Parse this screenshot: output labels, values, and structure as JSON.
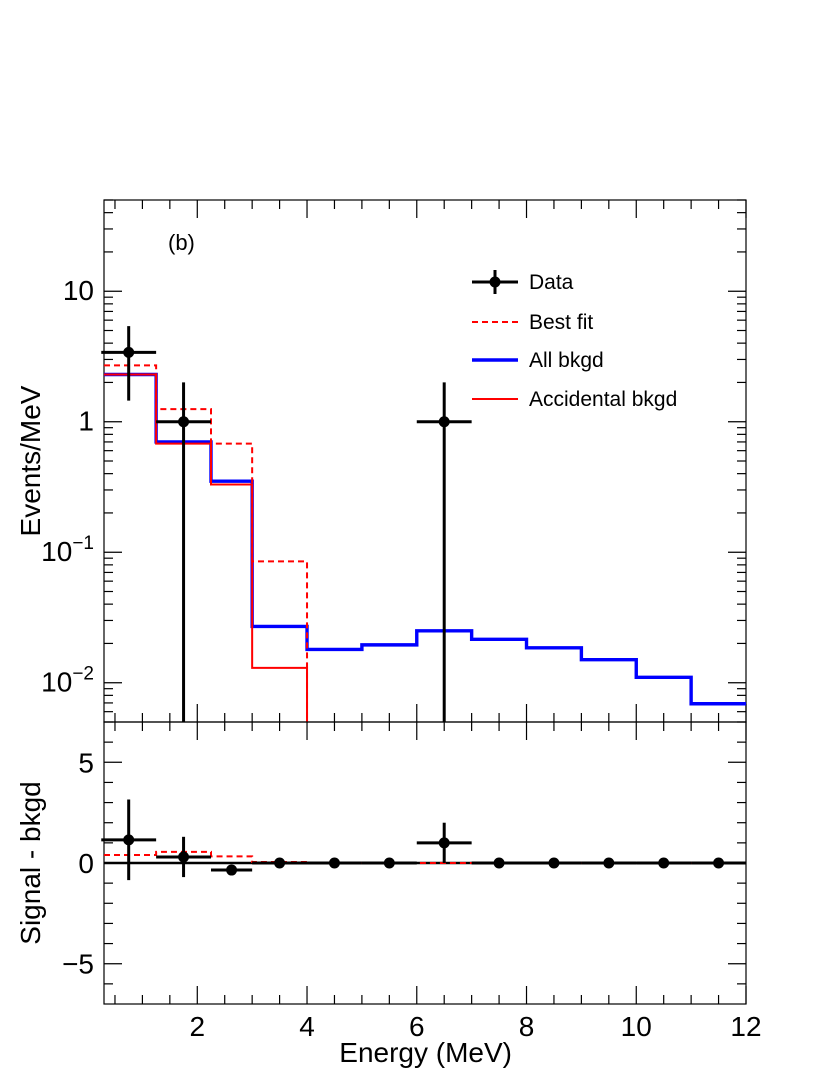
{
  "chart_data": [
    {
      "type": "step",
      "panel": "top",
      "annotation": "(b)",
      "ylabel": "Events/MeV",
      "yscale": "log",
      "ylim": [
        0.005,
        50
      ],
      "xlim": [
        0.3,
        12
      ],
      "y_ticks": [
        {
          "value": 0.01,
          "base": "10",
          "exp": "−2"
        },
        {
          "value": 0.1,
          "base": "10",
          "exp": "−1"
        },
        {
          "value": 1,
          "base": "1",
          "exp": ""
        },
        {
          "value": 10,
          "base": "10",
          "exp": ""
        }
      ],
      "legend": {
        "placement": "top-right",
        "entries": [
          {
            "label": "Data",
            "style": "marker"
          },
          {
            "label": "Best fit",
            "style": "dashed",
            "color": "#ff0000"
          },
          {
            "label": "All bkgd",
            "style": "solid-thick",
            "color": "#0000ff"
          },
          {
            "label": "Accidental bkgd",
            "style": "solid",
            "color": "#ff0000"
          }
        ]
      },
      "series": [
        {
          "name": "Best fit",
          "color": "#ff0000",
          "dashed": true,
          "edges": [
            0.3,
            1.25,
            2.25,
            3.0,
            4.0
          ],
          "values": [
            2.7,
            1.25,
            0.68,
            0.085
          ]
        },
        {
          "name": "All bkgd",
          "color": "#0000ff",
          "dashed": false,
          "edges": [
            0.3,
            1.25,
            2.25,
            3.0,
            4.0,
            5.0,
            6.0,
            7.0,
            8.0,
            9.0,
            10.0,
            11.0,
            12.0
          ],
          "values": [
            2.3,
            0.7,
            0.35,
            0.027,
            0.018,
            0.0195,
            0.025,
            0.0215,
            0.0185,
            0.015,
            0.011,
            0.0069
          ]
        },
        {
          "name": "Accidental bkgd",
          "color": "#ff0000",
          "dashed": false,
          "edges": [
            0.3,
            1.25,
            2.25,
            3.0,
            4.0
          ],
          "values": [
            2.3,
            0.68,
            0.33,
            0.013
          ]
        }
      ],
      "data_points": [
        {
          "x": 0.75,
          "y": 3.4,
          "xerr": [
            0.5,
            0.5
          ],
          "yup": 5.4,
          "ylow": 1.45
        },
        {
          "x": 1.75,
          "y": 1.0,
          "xerr": [
            0.5,
            0.5
          ],
          "yup": 2.0,
          "ylow": 0.0001
        },
        {
          "x": 6.5,
          "y": 1.0,
          "xerr": [
            0.5,
            0.5
          ],
          "yup": 2.0,
          "ylow": 0.0001
        }
      ]
    },
    {
      "type": "scatter",
      "panel": "bottom",
      "xlabel": "Energy (MeV)",
      "ylabel": "Signal - bkgd",
      "xlim": [
        0.3,
        12
      ],
      "ylim": [
        -7,
        7
      ],
      "x_ticks": [
        2,
        4,
        6,
        8,
        10,
        12
      ],
      "y_ticks": [
        {
          "value": -5,
          "label": "−5"
        },
        {
          "value": 0,
          "label": "0"
        },
        {
          "value": 5,
          "label": "5"
        }
      ],
      "best_fit_excess": {
        "edges": [
          0.3,
          1.25,
          2.25,
          3.0,
          4.0,
          12.0
        ],
        "values": [
          0.4,
          0.55,
          0.33,
          0.05,
          0.0
        ],
        "color": "#ff0000"
      },
      "points": [
        {
          "x": 0.75,
          "y": 1.15,
          "xerr": [
            0.5,
            0.5
          ],
          "yerr": 2.0
        },
        {
          "x": 1.75,
          "y": 0.3,
          "xerr": [
            0.5,
            0.5
          ],
          "yerr": 1.0
        },
        {
          "x": 2.625,
          "y": -0.35,
          "xerr": [
            0.375,
            0.375
          ],
          "yerr": 0.0
        },
        {
          "x": 3.5,
          "y": 0.0,
          "xerr": [
            0.5,
            0.5
          ],
          "yerr": 0.0
        },
        {
          "x": 4.5,
          "y": 0.0,
          "xerr": [
            0.5,
            0.5
          ],
          "yerr": 0.0
        },
        {
          "x": 5.5,
          "y": 0.0,
          "xerr": [
            0.5,
            0.5
          ],
          "yerr": 0.0
        },
        {
          "x": 6.5,
          "y": 1.0,
          "xerr": [
            0.5,
            0.5
          ],
          "yerr": 1.0
        },
        {
          "x": 7.5,
          "y": 0.0,
          "xerr": [
            0.5,
            0.5
          ],
          "yerr": 0.0
        },
        {
          "x": 8.5,
          "y": 0.0,
          "xerr": [
            0.5,
            0.5
          ],
          "yerr": 0.0
        },
        {
          "x": 9.5,
          "y": 0.0,
          "xerr": [
            0.5,
            0.5
          ],
          "yerr": 0.0
        },
        {
          "x": 10.5,
          "y": 0.0,
          "xerr": [
            0.5,
            0.5
          ],
          "yerr": 0.0
        },
        {
          "x": 11.5,
          "y": 0.0,
          "xerr": [
            0.5,
            0.5
          ],
          "yerr": 0.0
        }
      ]
    }
  ]
}
